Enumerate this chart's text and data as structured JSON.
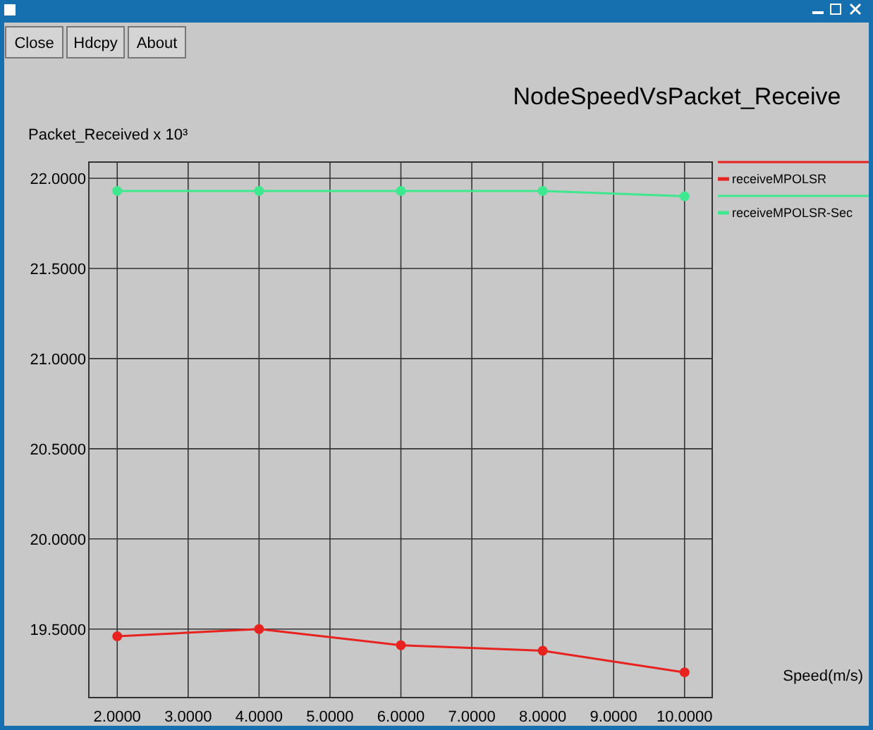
{
  "chart_data": {
    "type": "line",
    "title": "NodeSpeedVsPacket_Receive",
    "xlabel": "Speed(m/s)",
    "ylabel": "Packet_Received x 10³",
    "annotations": [
      "Close",
      "Hdcpy",
      "About"
    ],
    "x": [
      2,
      4,
      6,
      8,
      10
    ],
    "series": [
      {
        "name": "receiveMPOLSR",
        "color": "#e8231f",
        "values": [
          19.46,
          19.5,
          19.41,
          19.38,
          19.26
        ]
      },
      {
        "name": "receiveMPOLSR-Sec",
        "color": "#3ee88e",
        "values": [
          21.93,
          21.93,
          21.93,
          21.93,
          21.9
        ]
      }
    ],
    "xlim": [
      1.6,
      10.39
    ],
    "ylim": [
      19.12,
      22.09
    ],
    "xticks": [
      {
        "value": 2,
        "label": "2.0000"
      },
      {
        "value": 3,
        "label": "3.0000"
      },
      {
        "value": 4,
        "label": "4.0000"
      },
      {
        "value": 5,
        "label": "5.0000"
      },
      {
        "value": 6,
        "label": "6.0000"
      },
      {
        "value": 7,
        "label": "7.0000"
      },
      {
        "value": 8,
        "label": "8.0000"
      },
      {
        "value": 9,
        "label": "9.0000"
      },
      {
        "value": 10,
        "label": "10.0000"
      }
    ],
    "yticks": [
      {
        "value": 19.5,
        "label": "19.5000"
      },
      {
        "value": 20,
        "label": "20.0000"
      },
      {
        "value": 20.5,
        "label": "20.5000"
      },
      {
        "value": 21,
        "label": "21.0000"
      },
      {
        "value": 21.5,
        "label": "21.5000"
      },
      {
        "value": 22,
        "label": "22.0000"
      }
    ],
    "grid": true,
    "legend": "right",
    "marker": "circle",
    "line_style": "solid"
  }
}
